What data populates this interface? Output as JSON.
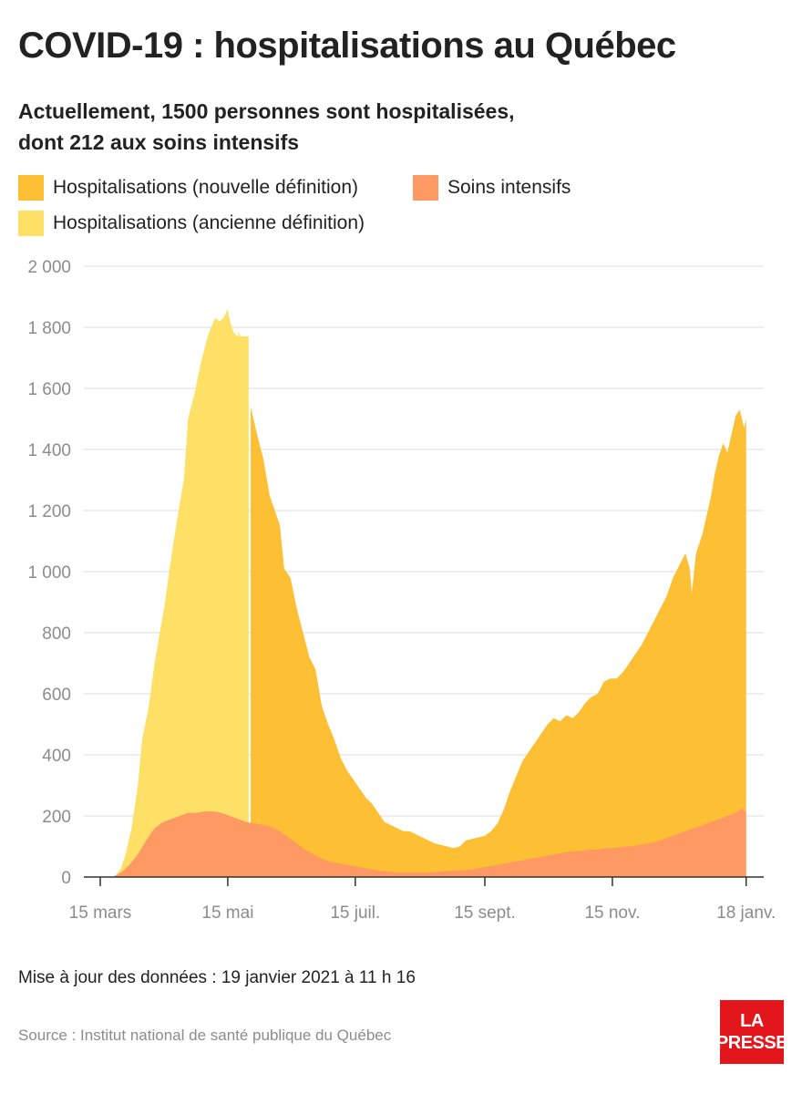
{
  "header": {
    "title": "COVID-19 : hospitalisations au Québec",
    "subtitle_line1": "Actuellement, 1500 personnes sont hospitalisées,",
    "subtitle_line2": "dont 212 aux soins intensifs"
  },
  "footer": {
    "update": "Mise à jour des données : 19 janvier 2021 à 11 h 16",
    "source": "Source : Institut national de santé publique du Québec",
    "logo_line1": "LA",
    "logo_line2": "PRESSE"
  },
  "colors": {
    "new_def": "#fdbf33",
    "old_def": "#fee067",
    "icu": "#fe9964",
    "grid": "#dcdcdc",
    "axis": "#333333"
  },
  "chart_data": {
    "type": "area",
    "title": "COVID-19 : hospitalisations au Québec",
    "xlabel": "",
    "ylabel": "",
    "ylim": [
      0,
      2000
    ],
    "yticks": [
      0,
      200,
      400,
      600,
      800,
      1000,
      1200,
      1400,
      1600,
      1800,
      2000
    ],
    "ytick_labels": [
      "0",
      "200",
      "400",
      "600",
      "800",
      "1 000",
      "1 200",
      "1 400",
      "1 600",
      "1 800",
      "2 000"
    ],
    "xlim_days": [
      0,
      310
    ],
    "xticks": [
      {
        "day": 0,
        "label": "15 mars"
      },
      {
        "day": 61,
        "label": "15 mai"
      },
      {
        "day": 122,
        "label": "15 juil."
      },
      {
        "day": 184,
        "label": "15 sept."
      },
      {
        "day": 245,
        "label": "15 nov."
      },
      {
        "day": 309,
        "label": "18 janv."
      }
    ],
    "definition_change_day": 71,
    "legend": [
      {
        "key": "new_def",
        "label": "Hospitalisations (nouvelle définition)"
      },
      {
        "key": "icu",
        "label": "Soins intensifs"
      },
      {
        "key": "old_def",
        "label": "Hospitalisations (ancienne définition)"
      }
    ],
    "series": [
      {
        "name": "Hospitalisations (ancienne définition)",
        "key": "old_def",
        "points": [
          [
            6,
            0
          ],
          [
            8,
            10
          ],
          [
            10,
            30
          ],
          [
            12,
            70
          ],
          [
            15,
            160
          ],
          [
            18,
            300
          ],
          [
            20,
            450
          ],
          [
            23,
            550
          ],
          [
            26,
            700
          ],
          [
            28,
            780
          ],
          [
            31,
            900
          ],
          [
            34,
            1050
          ],
          [
            37,
            1180
          ],
          [
            40,
            1300
          ],
          [
            42,
            1500
          ],
          [
            45,
            1580
          ],
          [
            48,
            1680
          ],
          [
            51,
            1760
          ],
          [
            53,
            1800
          ],
          [
            55,
            1830
          ],
          [
            57,
            1820
          ],
          [
            59,
            1830
          ],
          [
            61,
            1860
          ],
          [
            62,
            1820
          ],
          [
            64,
            1780
          ],
          [
            66,
            1770
          ],
          [
            66,
            1790
          ],
          [
            67,
            1770
          ],
          [
            71,
            1770
          ]
        ]
      },
      {
        "name": "Hospitalisations (nouvelle définition)",
        "key": "new_def",
        "points": [
          [
            72,
            1540
          ],
          [
            75,
            1450
          ],
          [
            78,
            1370
          ],
          [
            81,
            1250
          ],
          [
            84,
            1190
          ],
          [
            86,
            1150
          ],
          [
            88,
            1010
          ],
          [
            91,
            980
          ],
          [
            94,
            880
          ],
          [
            97,
            800
          ],
          [
            100,
            720
          ],
          [
            103,
            680
          ],
          [
            106,
            560
          ],
          [
            109,
            500
          ],
          [
            112,
            450
          ],
          [
            115,
            390
          ],
          [
            118,
            350
          ],
          [
            121,
            320
          ],
          [
            124,
            290
          ],
          [
            127,
            260
          ],
          [
            130,
            240
          ],
          [
            133,
            210
          ],
          [
            136,
            180
          ],
          [
            139,
            170
          ],
          [
            142,
            160
          ],
          [
            145,
            150
          ],
          [
            148,
            150
          ],
          [
            151,
            140
          ],
          [
            154,
            130
          ],
          [
            157,
            120
          ],
          [
            160,
            110
          ],
          [
            163,
            105
          ],
          [
            166,
            100
          ],
          [
            169,
            95
          ],
          [
            172,
            100
          ],
          [
            175,
            120
          ],
          [
            178,
            125
          ],
          [
            181,
            130
          ],
          [
            184,
            135
          ],
          [
            187,
            150
          ],
          [
            190,
            175
          ],
          [
            193,
            220
          ],
          [
            196,
            280
          ],
          [
            199,
            330
          ],
          [
            202,
            380
          ],
          [
            205,
            410
          ],
          [
            208,
            440
          ],
          [
            211,
            470
          ],
          [
            214,
            500
          ],
          [
            217,
            520
          ],
          [
            220,
            510
          ],
          [
            223,
            530
          ],
          [
            226,
            520
          ],
          [
            229,
            540
          ],
          [
            232,
            570
          ],
          [
            235,
            590
          ],
          [
            238,
            600
          ],
          [
            241,
            640
          ],
          [
            244,
            650
          ],
          [
            247,
            650
          ],
          [
            250,
            670
          ],
          [
            253,
            700
          ],
          [
            256,
            730
          ],
          [
            259,
            760
          ],
          [
            262,
            800
          ],
          [
            265,
            840
          ],
          [
            268,
            880
          ],
          [
            271,
            920
          ],
          [
            274,
            980
          ],
          [
            277,
            1020
          ],
          [
            280,
            1060
          ],
          [
            282,
            1010
          ],
          [
            283,
            930
          ],
          [
            285,
            1060
          ],
          [
            288,
            1120
          ],
          [
            290,
            1180
          ],
          [
            292,
            1240
          ],
          [
            294,
            1320
          ],
          [
            296,
            1380
          ],
          [
            298,
            1420
          ],
          [
            300,
            1390
          ],
          [
            302,
            1450
          ],
          [
            304,
            1510
          ],
          [
            306,
            1530
          ],
          [
            307,
            1500
          ],
          [
            308,
            1470
          ],
          [
            309,
            1500
          ]
        ]
      },
      {
        "name": "Soins intensifs",
        "key": "icu",
        "points": [
          [
            6,
            0
          ],
          [
            10,
            15
          ],
          [
            14,
            40
          ],
          [
            18,
            75
          ],
          [
            22,
            120
          ],
          [
            26,
            160
          ],
          [
            30,
            180
          ],
          [
            34,
            190
          ],
          [
            38,
            200
          ],
          [
            42,
            210
          ],
          [
            46,
            210
          ],
          [
            50,
            215
          ],
          [
            54,
            215
          ],
          [
            58,
            210
          ],
          [
            62,
            200
          ],
          [
            66,
            190
          ],
          [
            70,
            180
          ],
          [
            74,
            175
          ],
          [
            78,
            170
          ],
          [
            82,
            165
          ],
          [
            86,
            150
          ],
          [
            90,
            130
          ],
          [
            94,
            110
          ],
          [
            98,
            90
          ],
          [
            102,
            75
          ],
          [
            106,
            60
          ],
          [
            110,
            50
          ],
          [
            114,
            45
          ],
          [
            118,
            40
          ],
          [
            122,
            35
          ],
          [
            126,
            30
          ],
          [
            130,
            25
          ],
          [
            134,
            20
          ],
          [
            138,
            18
          ],
          [
            142,
            15
          ],
          [
            146,
            15
          ],
          [
            150,
            15
          ],
          [
            154,
            15
          ],
          [
            158,
            15
          ],
          [
            162,
            18
          ],
          [
            166,
            20
          ],
          [
            170,
            20
          ],
          [
            174,
            22
          ],
          [
            178,
            25
          ],
          [
            182,
            30
          ],
          [
            186,
            35
          ],
          [
            190,
            40
          ],
          [
            194,
            45
          ],
          [
            198,
            50
          ],
          [
            202,
            55
          ],
          [
            206,
            60
          ],
          [
            210,
            65
          ],
          [
            214,
            70
          ],
          [
            218,
            75
          ],
          [
            222,
            80
          ],
          [
            226,
            85
          ],
          [
            230,
            85
          ],
          [
            234,
            90
          ],
          [
            238,
            90
          ],
          [
            242,
            95
          ],
          [
            246,
            95
          ],
          [
            250,
            100
          ],
          [
            254,
            100
          ],
          [
            258,
            105
          ],
          [
            262,
            110
          ],
          [
            266,
            115
          ],
          [
            270,
            125
          ],
          [
            274,
            135
          ],
          [
            278,
            145
          ],
          [
            282,
            155
          ],
          [
            286,
            165
          ],
          [
            290,
            175
          ],
          [
            294,
            185
          ],
          [
            298,
            195
          ],
          [
            302,
            205
          ],
          [
            305,
            215
          ],
          [
            307,
            225
          ],
          [
            309,
            212
          ]
        ]
      }
    ]
  }
}
